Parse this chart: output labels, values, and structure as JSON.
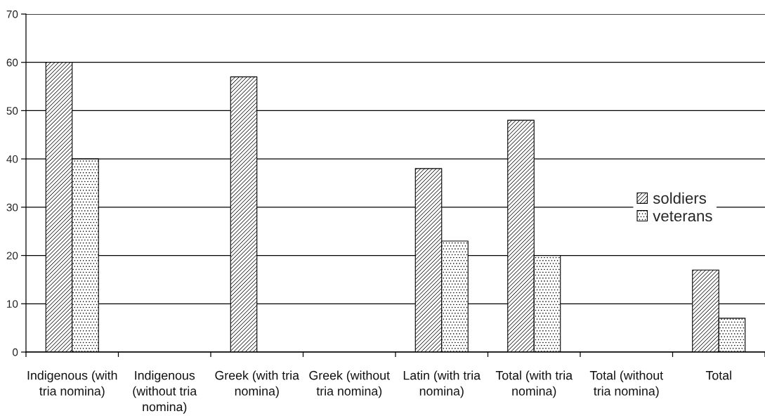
{
  "chart_data": {
    "type": "bar",
    "categories": [
      "Indigenous (with tria nomina)",
      "Indigenous (without tria nomina)",
      "Greek (with tria nomina)",
      "Greek (without tria nomina)",
      "Latin (with tria nomina)",
      "Total (with tria nomina)",
      "Total (without tria nomina)",
      "Total"
    ],
    "series": [
      {
        "name": "soldiers",
        "color": "#000000",
        "values": [
          60,
          null,
          57,
          null,
          38,
          48,
          null,
          17
        ]
      },
      {
        "name": "veterans",
        "color": "#000000",
        "values": [
          40,
          null,
          null,
          null,
          23,
          20,
          null,
          7
        ]
      }
    ],
    "ylim": [
      0,
      70
    ],
    "yticks": [
      0,
      10,
      20,
      30,
      40,
      50,
      60,
      70
    ],
    "grid": "y",
    "legend": "right"
  }
}
